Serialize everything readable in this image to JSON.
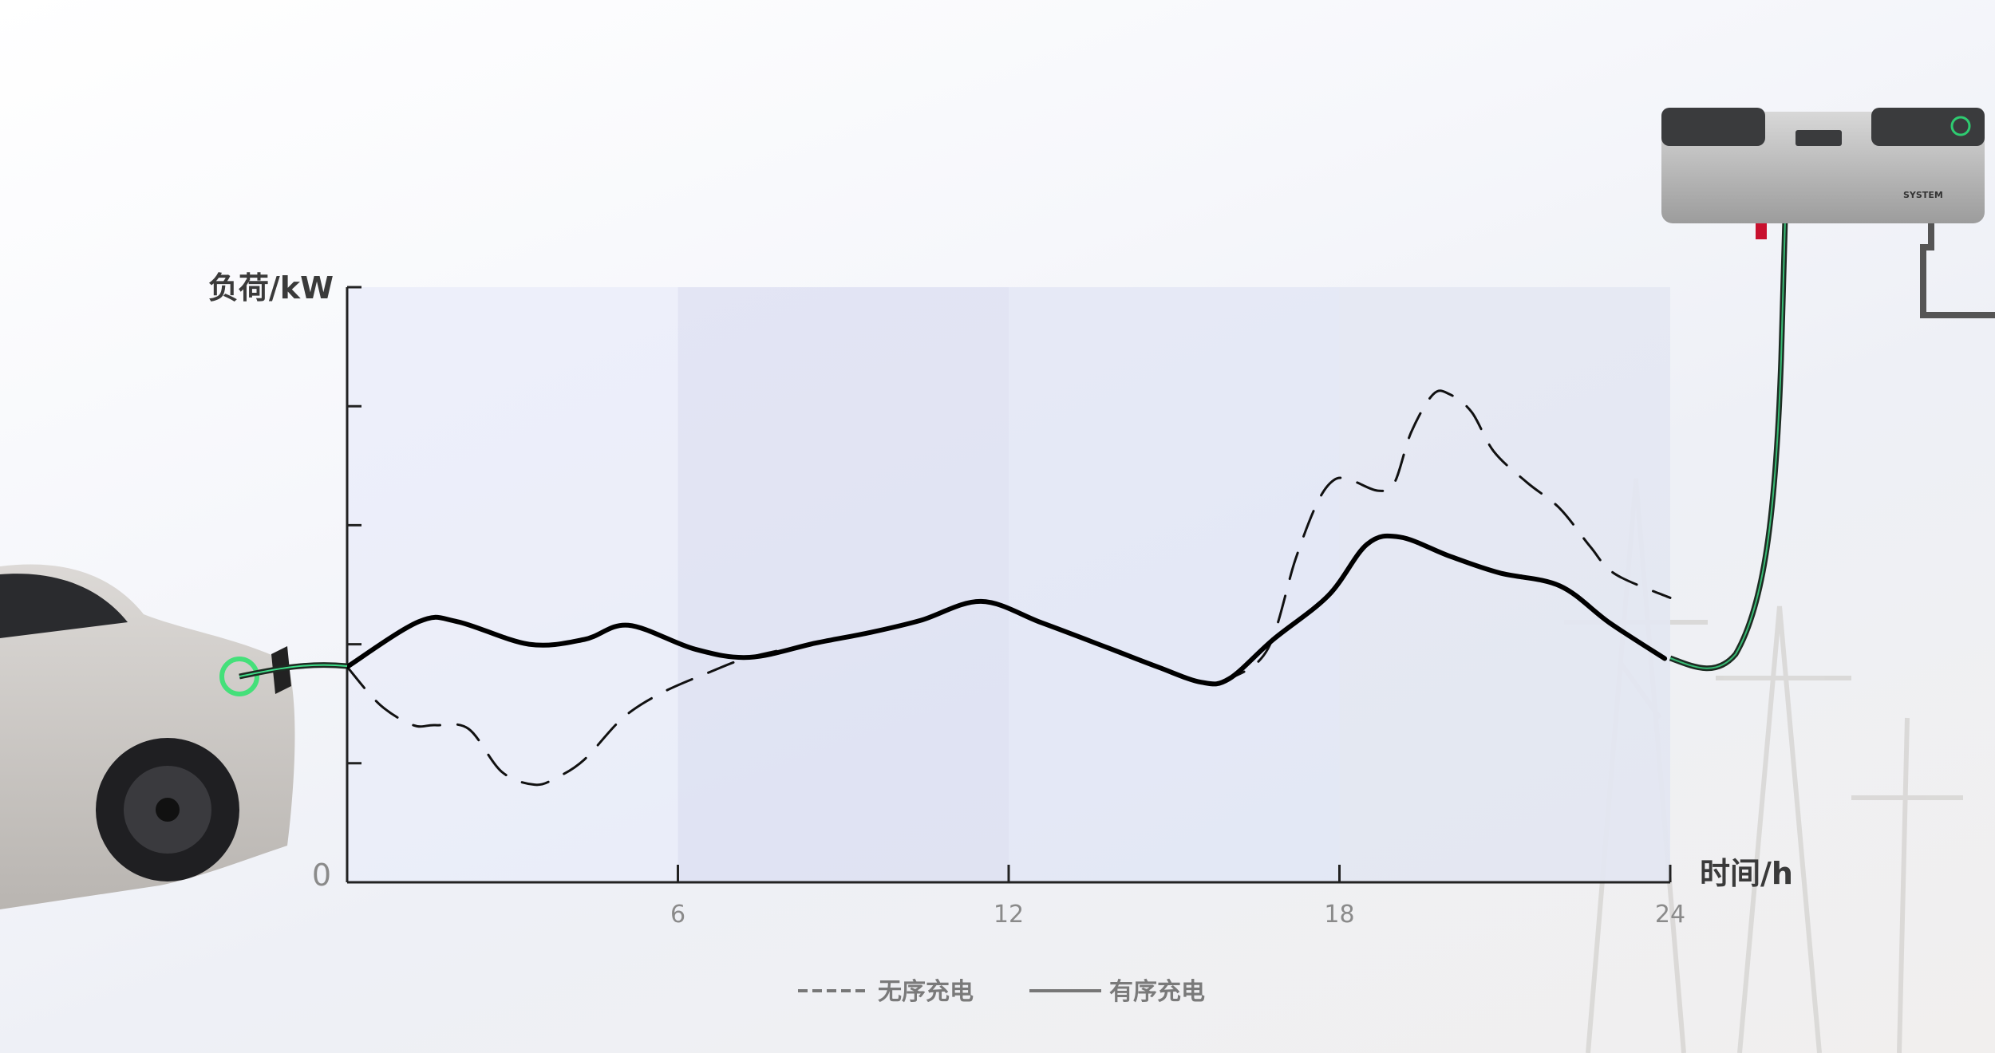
{
  "chart_data": {
    "type": "line",
    "xlabel": "时间/h",
    "ylabel": "负荷/kW",
    "xlim": [
      0,
      24
    ],
    "ylim": [
      0,
      5
    ],
    "x_ticks": [
      6,
      12,
      18,
      24
    ],
    "x_tick_labels": [
      "6",
      "12",
      "18",
      "24"
    ],
    "y_ticks": [
      0,
      1,
      2,
      3,
      4,
      5
    ],
    "y_tick_labels": [
      "0"
    ],
    "grid": false,
    "legend_position": "bottom-center",
    "series": [
      {
        "name": "无序充电",
        "style": "dashed",
        "color": "#111111",
        "x": [
          0,
          0.6,
          1.2,
          1.6,
          2.2,
          2.8,
          3.4,
          3.8,
          4.3,
          5.0,
          5.7,
          6.6,
          7.3,
          8.5,
          9.5,
          10.4,
          11.5,
          12.6,
          13.8,
          14.7,
          15.5,
          16.0,
          16.7,
          17.2,
          17.6,
          17.9,
          18.2,
          18.7,
          19.0,
          19.3,
          19.7,
          20.0,
          20.4,
          20.8,
          21.4,
          22.0,
          22.55,
          23.0,
          24.0
        ],
        "y": [
          1.81,
          1.49,
          1.32,
          1.32,
          1.29,
          0.93,
          0.82,
          0.88,
          1.03,
          1.38,
          1.59,
          1.77,
          1.89,
          2.01,
          2.1,
          2.2,
          2.36,
          2.18,
          1.97,
          1.81,
          1.68,
          1.71,
          1.96,
          2.71,
          3.19,
          3.38,
          3.38,
          3.29,
          3.36,
          3.78,
          4.1,
          4.1,
          3.95,
          3.62,
          3.36,
          3.14,
          2.82,
          2.59,
          2.39
        ]
      },
      {
        "name": "有序充电",
        "style": "solid",
        "color": "#000000",
        "x": [
          0,
          1.3,
          2.0,
          3.3,
          4.3,
          5.1,
          6.3,
          7.3,
          8.5,
          9.5,
          10.4,
          11.5,
          12.6,
          13.8,
          14.7,
          15.5,
          16.0,
          16.8,
          17.8,
          18.5,
          19.1,
          20.0,
          20.9,
          22.0,
          22.9,
          23.9
        ],
        "y": [
          1.81,
          2.19,
          2.19,
          2.0,
          2.04,
          2.16,
          1.96,
          1.89,
          2.01,
          2.1,
          2.2,
          2.36,
          2.18,
          1.97,
          1.81,
          1.68,
          1.71,
          2.04,
          2.41,
          2.84,
          2.9,
          2.74,
          2.6,
          2.49,
          2.18,
          1.88
        ]
      }
    ]
  },
  "charger": {
    "brand_text": "SYSTEM",
    "accent": "#2ecc71"
  }
}
